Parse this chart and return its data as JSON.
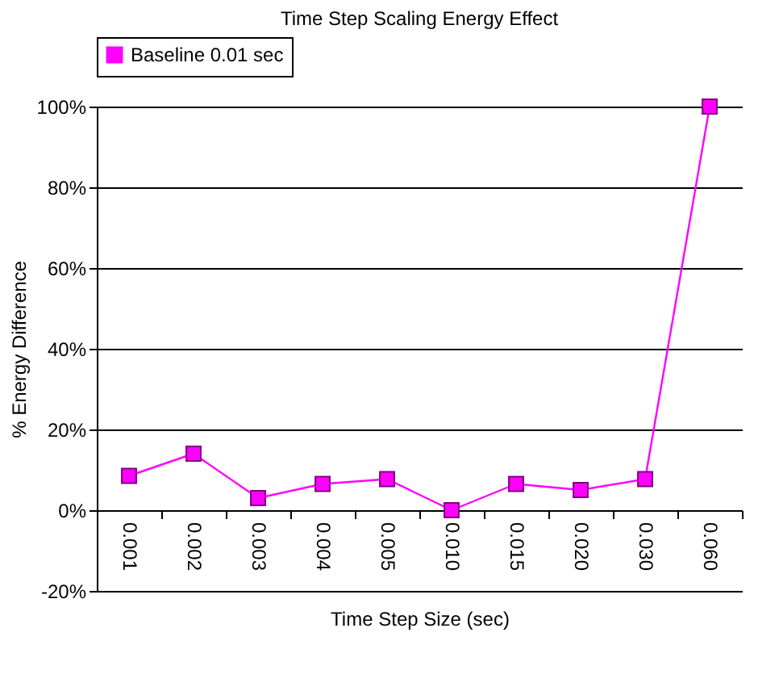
{
  "chart_data": {
    "type": "line",
    "title": "Time Step Scaling Energy Effect",
    "xlabel": "Time Step Size (sec)",
    "ylabel": "% Energy Difference",
    "categories": [
      "0.001",
      "0.002",
      "0.003",
      "0.004",
      "0.005",
      "0.010",
      "0.015",
      "0.020",
      "0.030",
      "0.060"
    ],
    "series": [
      {
        "name": "Baseline 0.01 sec",
        "color": "#ff00ff",
        "values": [
          8.5,
          14,
          3,
          6.5,
          7.7,
          0,
          6.5,
          5,
          7.7,
          100
        ]
      }
    ],
    "ylim": [
      -20,
      100
    ],
    "yticks": [
      {
        "value": -20,
        "label": "-20%"
      },
      {
        "value": 0,
        "label": "0%"
      },
      {
        "value": 20,
        "label": "20%"
      },
      {
        "value": 40,
        "label": "40%"
      },
      {
        "value": 60,
        "label": "60%"
      },
      {
        "value": 80,
        "label": "80%"
      },
      {
        "value": 100,
        "label": "100%"
      }
    ],
    "grid": "y",
    "legend": "top",
    "marker": "square"
  }
}
